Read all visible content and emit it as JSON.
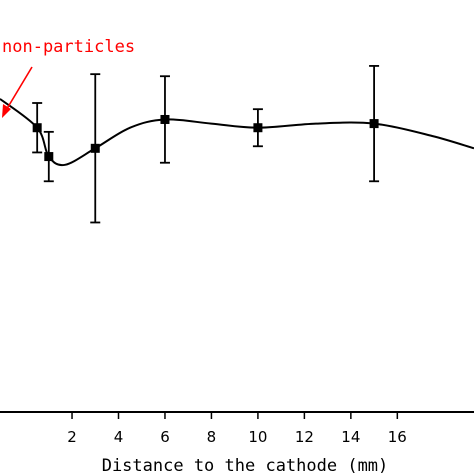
{
  "chart_data": {
    "type": "line",
    "xlabel": "Distance to the cathode (mm)",
    "xlim": [
      -1.1,
      19.3
    ],
    "ylim": [
      0,
      1
    ],
    "grid": false,
    "x_ticks": [
      2,
      4,
      6,
      8,
      10,
      12,
      14,
      16
    ],
    "x_tick_labels": [
      "2",
      "4",
      "6",
      "8",
      "10",
      "12",
      "14",
      "16"
    ],
    "series": [
      {
        "x": [
          0.5,
          1,
          3,
          6,
          10,
          15
        ],
        "y": [
          0.69,
          0.62,
          0.64,
          0.71,
          0.69,
          0.7
        ],
        "err": [
          0.06,
          0.06,
          0.18,
          0.105,
          0.045,
          0.14
        ],
        "curve_x": [
          -1.1,
          0.5,
          1,
          1.7,
          3,
          4.5,
          6,
          8,
          10,
          12.5,
          15,
          17.5,
          19.3
        ],
        "curve_y": [
          0.76,
          0.69,
          0.62,
          0.6,
          0.64,
          0.69,
          0.71,
          0.7,
          0.69,
          0.7,
          0.7,
          0.67,
          0.64
        ]
      }
    ],
    "annotation": {
      "text": "non-particles",
      "color": "#ff0000"
    }
  }
}
